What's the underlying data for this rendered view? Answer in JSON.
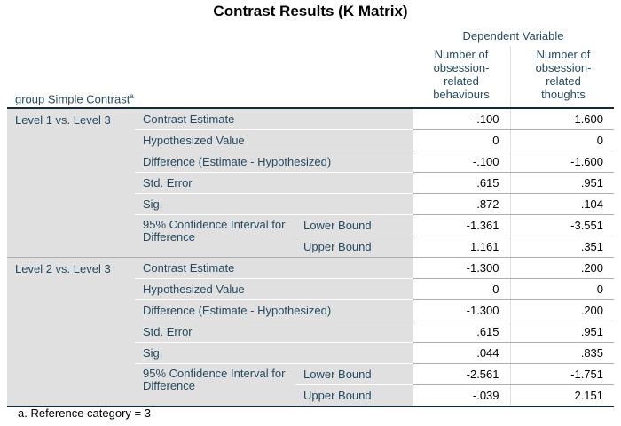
{
  "title": "Contrast Results (K Matrix)",
  "header": {
    "dependent_variable": "Dependent Variable",
    "columns": [
      "Number of obsession-related behaviours",
      "Number of obsession-related thoughts"
    ],
    "columns_lines": [
      [
        "Number of",
        "obsession-",
        "related",
        "behaviours"
      ],
      [
        "Number of",
        "obsession-",
        "related",
        "thoughts"
      ]
    ],
    "row_header": "group Simple Contrast",
    "row_header_superscript": "a"
  },
  "groups": [
    {
      "label": "Level 1 vs. Level 3",
      "rows": [
        {
          "label": "Contrast Estimate",
          "values": [
            "-.100",
            "-1.600"
          ]
        },
        {
          "label": "Hypothesized Value",
          "values": [
            "0",
            "0"
          ]
        },
        {
          "label": "Difference (Estimate - Hypothesized)",
          "values": [
            "-.100",
            "-1.600"
          ]
        },
        {
          "label": "Std. Error",
          "values": [
            ".615",
            ".951"
          ]
        },
        {
          "label": "Sig.",
          "values": [
            ".872",
            ".104"
          ]
        }
      ],
      "ci_label": "95% Confidence Interval for Difference",
      "ci_rows": [
        {
          "label": "Lower Bound",
          "values": [
            "-1.361",
            "-3.551"
          ]
        },
        {
          "label": "Upper Bound",
          "values": [
            "1.161",
            ".351"
          ]
        }
      ]
    },
    {
      "label": "Level 2 vs. Level 3",
      "rows": [
        {
          "label": "Contrast Estimate",
          "values": [
            "-1.300",
            ".200"
          ]
        },
        {
          "label": "Hypothesized Value",
          "values": [
            "0",
            "0"
          ]
        },
        {
          "label": "Difference (Estimate - Hypothesized)",
          "values": [
            "-1.300",
            ".200"
          ]
        },
        {
          "label": "Std. Error",
          "values": [
            ".615",
            ".951"
          ]
        },
        {
          "label": "Sig.",
          "values": [
            ".044",
            ".835"
          ]
        }
      ],
      "ci_label": "95% Confidence Interval for Difference",
      "ci_rows": [
        {
          "label": "Lower Bound",
          "values": [
            "-2.561",
            "-1.751"
          ]
        },
        {
          "label": "Upper Bound",
          "values": [
            "-.039",
            "2.151"
          ]
        }
      ]
    }
  ],
  "footnote": "a. Reference category = 3",
  "colors": {
    "text": "#264a60",
    "label_background": "#e0e0e0",
    "rule": "#152935"
  }
}
